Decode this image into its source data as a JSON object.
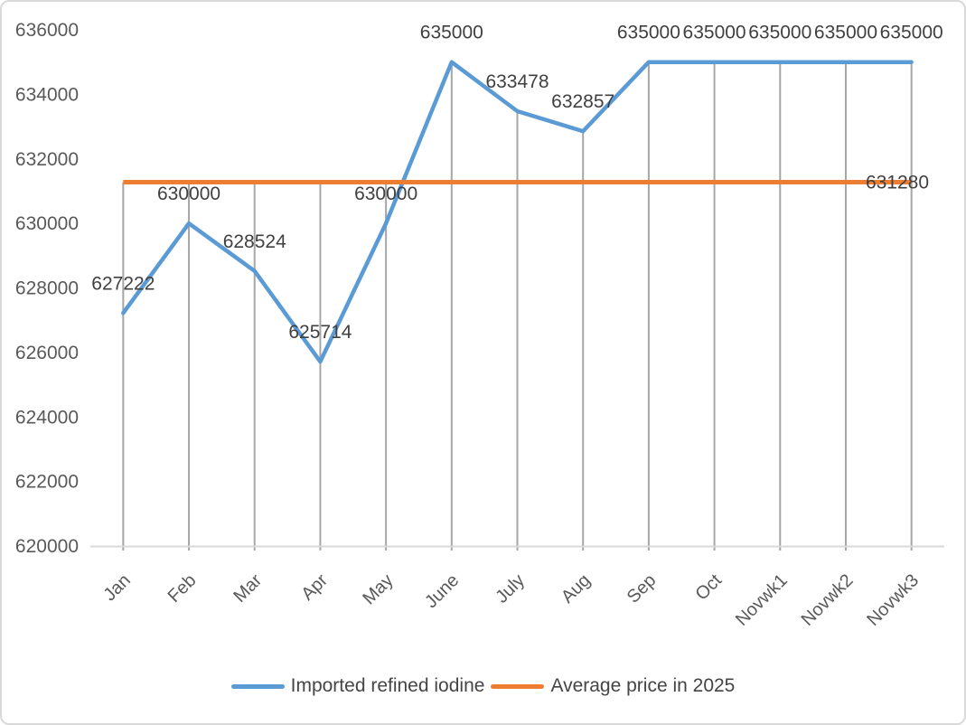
{
  "chart_data": {
    "type": "line",
    "title": "",
    "xlabel": "",
    "ylabel": "",
    "categories": [
      "Jan",
      "Feb",
      "Mar",
      "Apr",
      "May",
      "June",
      "July",
      "Aug",
      "Sep",
      "Oct",
      "Novwk1",
      "Novwk2",
      "Novwk3"
    ],
    "series": [
      {
        "name": "Imported refined iodine",
        "color": "#5B9BD5",
        "values": [
          627222,
          630000,
          628524,
          625714,
          630000,
          635000,
          633478,
          632857,
          635000,
          635000,
          635000,
          635000,
          635000
        ],
        "data_labels": [
          "627222",
          "630000",
          "628524",
          "625714",
          "630000",
          "635000",
          "633478",
          "632857",
          "635000",
          "635000",
          "635000",
          "635000",
          "635000"
        ]
      },
      {
        "name": "Average price in 2025",
        "color": "#ED7D31",
        "values": [
          631280,
          631280,
          631280,
          631280,
          631280,
          631280,
          631280,
          631280,
          631280,
          631280,
          631280,
          631280,
          631280
        ],
        "end_label": "631280"
      }
    ],
    "y_axis": {
      "min": 620000,
      "max": 636000,
      "step": 2000,
      "tick_labels": [
        "636000",
        "634000",
        "632000",
        "630000",
        "628000",
        "626000",
        "624000",
        "622000",
        "620000"
      ]
    },
    "legend": {
      "position": "bottom",
      "entries": [
        "Imported refined iodine",
        "Average price in 2025"
      ]
    },
    "grid": "vertical-drop-lines",
    "colors": {
      "axis_line": "#D9D9D9",
      "drop_line": "#A6A6A6",
      "axis_text": "#595959",
      "data_label_text": "#404040"
    }
  }
}
